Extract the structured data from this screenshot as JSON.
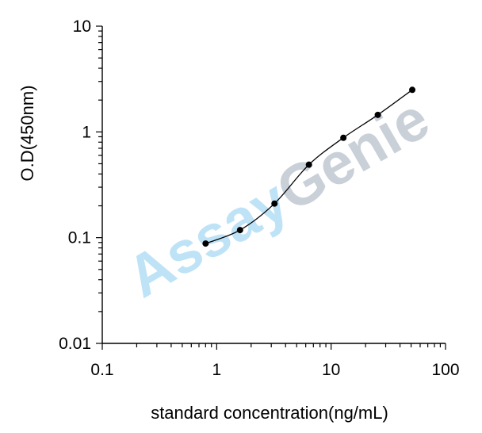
{
  "chart_data": {
    "type": "line",
    "title": "",
    "xlabel": "standard concentration(ng/mL)",
    "ylabel": "O.D(450nm)",
    "xscale": "log",
    "yscale": "log",
    "xlim": [
      0.1,
      100
    ],
    "ylim": [
      0.01,
      10
    ],
    "x_ticks": [
      "0.1",
      "1",
      "10",
      "100"
    ],
    "y_ticks": [
      "0.01",
      "0.1",
      "1",
      "10"
    ],
    "grid": false,
    "legend": "none",
    "series": [
      {
        "x": [
          0.8,
          1.6,
          3.2,
          6.4,
          12.8,
          25.6,
          51.2
        ],
        "y": [
          0.088,
          0.118,
          0.21,
          0.49,
          0.88,
          1.45,
          2.5
        ],
        "color": "#000000",
        "marker": "circle",
        "smooth": true
      }
    ],
    "watermark": {
      "part1": "Assay",
      "part2": "Genie",
      "color1": "#bfe3f6",
      "color2": "#c9d0d8"
    }
  }
}
